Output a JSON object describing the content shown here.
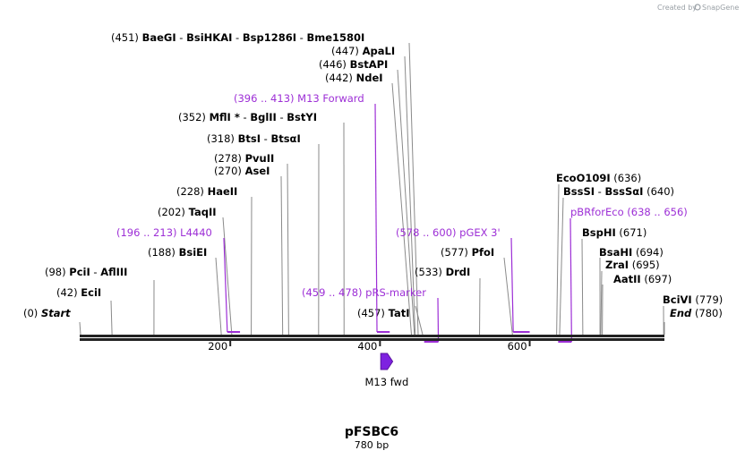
{
  "watermark": {
    "prefix": "Created by",
    "brand": "SnapGene"
  },
  "map": {
    "name": "pFSBC6",
    "length_label": "780 bp",
    "length_bp": 780,
    "ticks": [
      {
        "bp": 200,
        "label": "200"
      },
      {
        "bp": 400,
        "label": "400"
      },
      {
        "bp": 600,
        "label": "600"
      }
    ],
    "feature": {
      "name": "M13 fwd",
      "start": 401,
      "end": 417,
      "color": "#7e22e0"
    }
  },
  "sites": [
    {
      "id": "start",
      "pos_label": "(0)",
      "names": [
        "Start"
      ],
      "bp": 0,
      "italic": true
    },
    {
      "id": "ecii",
      "pos_label": "(42)",
      "names": [
        "EciI"
      ],
      "bp": 42
    },
    {
      "id": "pcii",
      "pos_label": "(98)",
      "names": [
        "PciI",
        "AflIII"
      ],
      "bp": 98
    },
    {
      "id": "bsiei",
      "pos_label": "(188)",
      "names": [
        "BsiEI"
      ],
      "bp": 188
    },
    {
      "id": "taqii",
      "pos_label": "(202)",
      "names": [
        "TaqII"
      ],
      "bp": 202
    },
    {
      "id": "haeii",
      "pos_label": "(228)",
      "names": [
        "HaeII"
      ],
      "bp": 228
    },
    {
      "id": "asei",
      "pos_label": "(270)",
      "names": [
        "AseI"
      ],
      "bp": 270
    },
    {
      "id": "pvuii",
      "pos_label": "(278)",
      "names": [
        "PvuII"
      ],
      "bp": 278
    },
    {
      "id": "btsi",
      "pos_label": "(318)",
      "names": [
        "BtsI",
        "BtsαI"
      ],
      "bp": 318
    },
    {
      "id": "mfli",
      "pos_label": "(352)",
      "names": [
        "MflI *",
        "BglII",
        "BstYI"
      ],
      "bp": 352
    },
    {
      "id": "ndei",
      "pos_label": "(442)",
      "names": [
        "NdeI"
      ],
      "bp": 442
    },
    {
      "id": "bstapi",
      "pos_label": "(446)",
      "names": [
        "BstAPI"
      ],
      "bp": 446
    },
    {
      "id": "apali",
      "pos_label": "(447)",
      "names": [
        "ApaLI"
      ],
      "bp": 447
    },
    {
      "id": "baegi",
      "pos_label": "(451)",
      "names": [
        "BaeGI",
        "BsiHKAI",
        "Bsp1286I",
        "Bme1580I"
      ],
      "bp": 451
    },
    {
      "id": "tati",
      "pos_label": "(457)",
      "names": [
        "TatI"
      ],
      "bp": 457
    },
    {
      "id": "drdi",
      "pos_label": "(533)",
      "names": [
        "DrdI"
      ],
      "bp": 533
    },
    {
      "id": "pfoi",
      "pos_label": "(577)",
      "names": [
        "PfoI"
      ],
      "bp": 577
    },
    {
      "id": "ecoo109i",
      "pos_label": "(636)",
      "names": [
        "EcoO109I"
      ],
      "bp": 636
    },
    {
      "id": "bsssi",
      "pos_label": "(640)",
      "names": [
        "BssSI",
        "BssSαI"
      ],
      "bp": 640
    },
    {
      "id": "bsphi",
      "pos_label": "(671)",
      "names": [
        "BspHI"
      ],
      "bp": 671
    },
    {
      "id": "bsahi",
      "pos_label": "(694)",
      "names": [
        "BsaHI"
      ],
      "bp": 694
    },
    {
      "id": "zrai",
      "pos_label": "(695)",
      "names": [
        "ZraI"
      ],
      "bp": 695
    },
    {
      "id": "aatii",
      "pos_label": "(697)",
      "names": [
        "AatII"
      ],
      "bp": 697
    },
    {
      "id": "bcivi",
      "pos_label": "(779)",
      "names": [
        "BciVI"
      ],
      "bp": 779
    },
    {
      "id": "end",
      "pos_label": "(780)",
      "names": [
        "End"
      ],
      "bp": 780,
      "italic": true
    }
  ],
  "primers": [
    {
      "id": "l4440",
      "range_label": "(196 .. 213)",
      "name": "L4440",
      "start": 196,
      "end": 213,
      "strand": "top"
    },
    {
      "id": "m13-forward",
      "range_label": "(396 .. 413)",
      "name": "M13 Forward",
      "start": 396,
      "end": 413,
      "strand": "top"
    },
    {
      "id": "prs-marker",
      "range_label": "(459 .. 478)",
      "name": "pRS-marker",
      "start": 459,
      "end": 478,
      "strand": "bottom"
    },
    {
      "id": "pgex-3",
      "range_label": "(578 .. 600)",
      "name": "pGEX 3'",
      "start": 578,
      "end": 600,
      "strand": "top"
    },
    {
      "id": "pbrforeco",
      "range_label": "(638 .. 656)",
      "name": "pBRforEco",
      "start": 638,
      "end": 656,
      "strand": "bottom"
    }
  ]
}
